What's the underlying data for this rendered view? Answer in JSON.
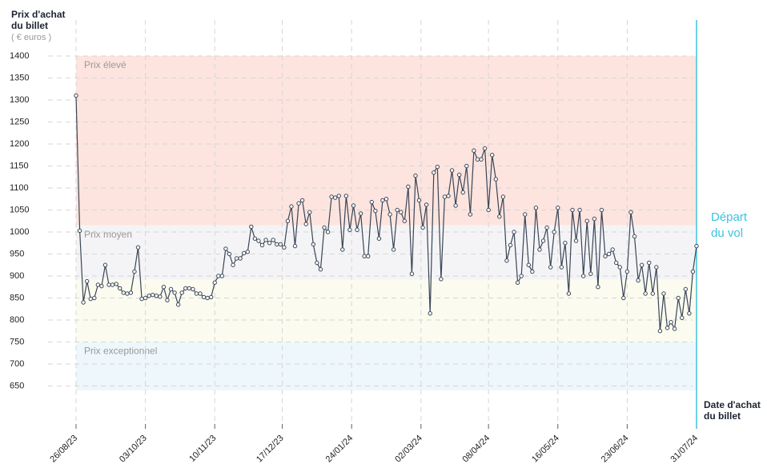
{
  "chart_data": {
    "type": "line",
    "y_axis_title": "Prix d'achat du billet",
    "y_axis_unit": "( € euros )",
    "x_axis_title": "Date d'achat du billet",
    "ylim": [
      640,
      1400
    ],
    "yticks": [
      650,
      700,
      750,
      800,
      850,
      900,
      950,
      1000,
      1050,
      1100,
      1150,
      1200,
      1250,
      1300,
      1350,
      1400
    ],
    "xlim": [
      0,
      340
    ],
    "xticks": [
      {
        "value": 0,
        "label": "26/08/23"
      },
      {
        "value": 38,
        "label": "03/10/23"
      },
      {
        "value": 76,
        "label": "10/11/23"
      },
      {
        "value": 113,
        "label": "17/12/23"
      },
      {
        "value": 151,
        "label": "24/01/24"
      },
      {
        "value": 189,
        "label": "02/03/24"
      },
      {
        "value": 226,
        "label": "08/04/24"
      },
      {
        "value": 264,
        "label": "16/05/24"
      },
      {
        "value": 302,
        "label": "23/06/24"
      },
      {
        "value": 340,
        "label": "31/07/24"
      }
    ],
    "grid": true,
    "zones": [
      {
        "label": "Prix élevé",
        "from": 1015,
        "to": 1400,
        "color": "#fde4df"
      },
      {
        "label": "Prix moyen",
        "from": 892,
        "to": 1015,
        "color": "#f4f4f6"
      },
      {
        "label": null,
        "from": 750,
        "to": 892,
        "color": "#fbfbef"
      },
      {
        "label": "Prix exceptionnel",
        "from": 640,
        "to": 750,
        "color": "#eef7fb"
      }
    ],
    "departure": {
      "x": 340,
      "label": "Départ du vol",
      "color": "#3cc3dd"
    },
    "series": [
      {
        "name": "Prix",
        "color": "#3a4556",
        "x": [
          0,
          2,
          4,
          6,
          8,
          10,
          12,
          14,
          16,
          18,
          20,
          22,
          24,
          26,
          28,
          30,
          32,
          34,
          36,
          38,
          40,
          42,
          44,
          46,
          48,
          50,
          52,
          54,
          56,
          58,
          60,
          62,
          64,
          66,
          68,
          70,
          72,
          74,
          76,
          78,
          80,
          82,
          84,
          86,
          88,
          90,
          92,
          94,
          96,
          98,
          100,
          102,
          104,
          106,
          108,
          110,
          112,
          114,
          116,
          118,
          120,
          122,
          124,
          126,
          128,
          130,
          132,
          134,
          136,
          138,
          140,
          142,
          144,
          146,
          148,
          150,
          152,
          154,
          156,
          158,
          160,
          162,
          164,
          166,
          168,
          170,
          172,
          174,
          176,
          178,
          180,
          182,
          184,
          186,
          188,
          190,
          192,
          194,
          196,
          198,
          200,
          202,
          204,
          206,
          208,
          210,
          212,
          214,
          216,
          218,
          220,
          222,
          224,
          226,
          228,
          230,
          232,
          234,
          236,
          238,
          240,
          242,
          244,
          246,
          248,
          250,
          252,
          254,
          256,
          258,
          260,
          262,
          264,
          266,
          268,
          270,
          272,
          274,
          276,
          278,
          280,
          282,
          284,
          286,
          288,
          290,
          292,
          294,
          296,
          298,
          300,
          302,
          304,
          306,
          308,
          310,
          312,
          314,
          316,
          318,
          320,
          322,
          324,
          326,
          328,
          330,
          332,
          334,
          336,
          338,
          340
        ],
        "values": [
          1310,
          1003,
          840,
          888,
          848,
          850,
          880,
          877,
          925,
          880,
          880,
          882,
          872,
          862,
          860,
          862,
          910,
          965,
          848,
          850,
          855,
          857,
          855,
          853,
          875,
          845,
          870,
          862,
          835,
          862,
          872,
          872,
          870,
          860,
          860,
          852,
          850,
          852,
          885,
          900,
          900,
          962,
          950,
          925,
          940,
          940,
          952,
          955,
          1012,
          985,
          980,
          970,
          982,
          975,
          982,
          972,
          972,
          965,
          1025,
          1058,
          968,
          1065,
          1072,
          1018,
          1045,
          972,
          930,
          915,
          1010,
          1000,
          1080,
          1078,
          1082,
          960,
          1082,
          1005,
          1060,
          1005,
          1042,
          945,
          945,
          1068,
          1048,
          985,
          1072,
          1075,
          1040,
          960,
          1050,
          1045,
          1025,
          1103,
          905,
          1128,
          1072,
          1010,
          1062,
          815,
          1135,
          1148,
          893,
          1080,
          1082,
          1140,
          1060,
          1130,
          1090,
          1150,
          1040,
          1185,
          1165,
          1165,
          1190,
          1050,
          1175,
          1120,
          1035,
          1080,
          935,
          970,
          1000,
          885,
          900,
          1040,
          925,
          910,
          1055,
          960,
          980,
          1010,
          920,
          1000,
          1055,
          920,
          975,
          860,
          1050,
          980,
          1050,
          900,
          1025,
          905,
          1030,
          875,
          1050,
          945,
          950,
          960,
          930,
          920,
          850,
          910,
          1045,
          990,
          890,
          925,
          860,
          930,
          860,
          920,
          775,
          860,
          782,
          795,
          780,
          850,
          805,
          870,
          815,
          910,
          968
        ]
      }
    ]
  }
}
